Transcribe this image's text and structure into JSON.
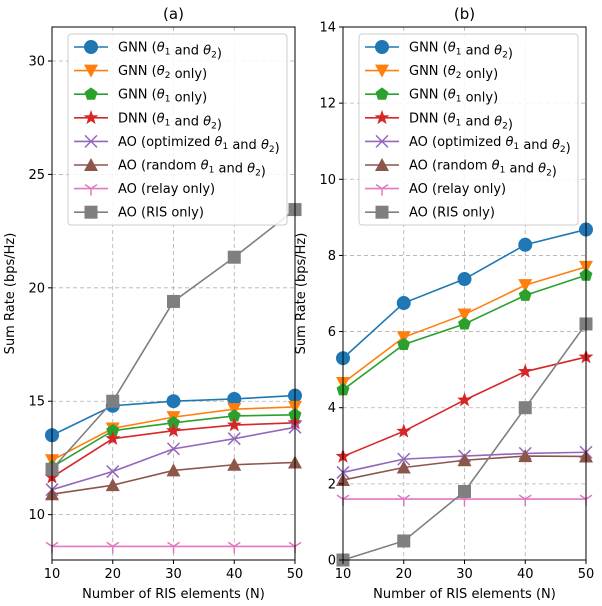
{
  "chart_data": [
    {
      "type": "line",
      "title": "(a)",
      "xlabel": "Number of RIS elements (N)",
      "ylabel": "Sum Rate (bps/Hz)",
      "x": [
        10,
        20,
        30,
        40,
        50
      ],
      "xlim": [
        10,
        50
      ],
      "ylim": [
        8.0,
        31.5
      ],
      "xticks": [
        "10",
        "20",
        "30",
        "40",
        "50"
      ],
      "yticks": [
        "10",
        "15",
        "20",
        "25",
        "30"
      ],
      "ytick_values": [
        10,
        15,
        20,
        25,
        30
      ],
      "grid": true,
      "legend_position": "top",
      "series": [
        {
          "name": "GNN (θ1 and θ2)",
          "marker": "circle",
          "color": "#1f77b4",
          "values": [
            13.5,
            14.8,
            15.0,
            15.1,
            15.25
          ]
        },
        {
          "name": "GNN (θ2 only)",
          "marker": "triangle-down",
          "color": "#ff7f0e",
          "values": [
            12.4,
            13.8,
            14.3,
            14.65,
            14.75
          ]
        },
        {
          "name": "GNN (θ1 only)",
          "marker": "pentagon",
          "color": "#2ca02c",
          "values": [
            12.1,
            13.7,
            14.05,
            14.35,
            14.4
          ]
        },
        {
          "name": "DNN (θ1 and θ2)",
          "marker": "star",
          "color": "#d62728",
          "values": [
            11.65,
            13.35,
            13.7,
            13.95,
            14.05
          ]
        },
        {
          "name": "AO (optimized θ1 and θ2)",
          "marker": "x",
          "color": "#9467bd",
          "values": [
            11.1,
            11.9,
            12.9,
            13.35,
            13.85
          ]
        },
        {
          "name": "AO (random θ1 and θ2)",
          "marker": "triangle-up",
          "color": "#8c564b",
          "values": [
            10.9,
            11.3,
            11.95,
            12.2,
            12.3
          ]
        },
        {
          "name": "AO (relay only)",
          "marker": "tri-down",
          "color": "#e377c2",
          "values": [
            8.6,
            8.6,
            8.6,
            8.6,
            8.6
          ]
        },
        {
          "name": "AO (RIS only)",
          "marker": "square",
          "color": "#7f7f7f",
          "values": [
            12.0,
            15.0,
            19.4,
            21.35,
            23.45
          ]
        }
      ]
    },
    {
      "type": "line",
      "title": "(b)",
      "xlabel": "Number of RIS elements (N)",
      "ylabel": "Sum Rate (bps/Hz)",
      "x": [
        10,
        20,
        30,
        40,
        50
      ],
      "xlim": [
        10,
        50
      ],
      "ylim": [
        0,
        14
      ],
      "xticks": [
        "10",
        "20",
        "30",
        "40",
        "50"
      ],
      "yticks": [
        "0",
        "2",
        "4",
        "6",
        "8",
        "10",
        "12",
        "14"
      ],
      "ytick_values": [
        0,
        2,
        4,
        6,
        8,
        10,
        12,
        14
      ],
      "grid": true,
      "legend_position": "top",
      "series": [
        {
          "name": "GNN (θ1 and θ2)",
          "marker": "circle",
          "color": "#1f77b4",
          "values": [
            5.3,
            6.75,
            7.38,
            8.28,
            8.68
          ]
        },
        {
          "name": "GNN (θ2 only)",
          "marker": "triangle-down",
          "color": "#ff7f0e",
          "values": [
            4.65,
            5.85,
            6.45,
            7.22,
            7.7
          ]
        },
        {
          "name": "GNN (θ1 only)",
          "marker": "pentagon",
          "color": "#2ca02c",
          "values": [
            4.47,
            5.66,
            6.2,
            6.95,
            7.48
          ]
        },
        {
          "name": "DNN (θ1 and θ2)",
          "marker": "star",
          "color": "#d62728",
          "values": [
            2.72,
            3.38,
            4.2,
            4.95,
            5.33
          ]
        },
        {
          "name": "AO (optimized θ1 and θ2)",
          "marker": "x",
          "color": "#9467bd",
          "values": [
            2.3,
            2.65,
            2.73,
            2.8,
            2.83
          ]
        },
        {
          "name": "AO (random θ1 and θ2)",
          "marker": "triangle-up",
          "color": "#8c564b",
          "values": [
            2.1,
            2.43,
            2.62,
            2.73,
            2.72
          ]
        },
        {
          "name": "AO (relay only)",
          "marker": "tri-down",
          "color": "#e377c2",
          "values": [
            1.6,
            1.6,
            1.6,
            1.6,
            1.6
          ]
        },
        {
          "name": "AO (RIS only)",
          "marker": "square",
          "color": "#7f7f7f",
          "values": [
            0.0,
            0.5,
            1.8,
            4.0,
            6.2
          ]
        }
      ]
    }
  ]
}
